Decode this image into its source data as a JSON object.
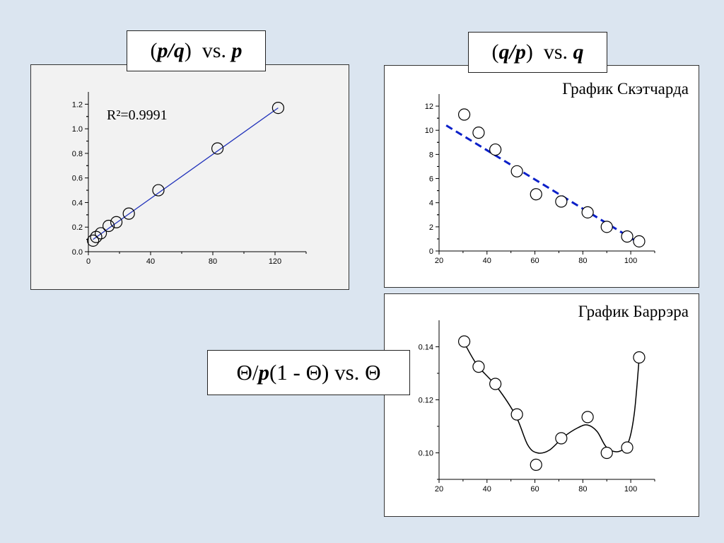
{
  "labels": {
    "chart1": {
      "open": "(",
      "a": "p",
      "slash": "/",
      "b": "q",
      "close": ")",
      "vs": "vs.",
      "c": "p"
    },
    "chart2": {
      "open": "(",
      "a": "q",
      "slash": "/",
      "b": "p",
      "close": ")",
      "vs": "vs.",
      "c": "q"
    },
    "chart3": {
      "theta1": "Θ",
      "slash": "/",
      "p": "p",
      "rest": "(1 - Θ)",
      "vs": "vs.",
      "theta2": "Θ"
    }
  },
  "chart_data": [
    {
      "type": "scatter",
      "annotation": "R²=0.9991",
      "xlim": [
        0,
        140
      ],
      "ylim": [
        0,
        1.3
      ],
      "x_ticks": [
        "0",
        "40",
        "80",
        "120"
      ],
      "y_ticks": [
        "0.0",
        "0.2",
        "0.4",
        "0.6",
        "0.8",
        "1.0",
        "1.2"
      ],
      "points": [
        {
          "x": 3,
          "y": 0.09
        },
        {
          "x": 5,
          "y": 0.12
        },
        {
          "x": 8,
          "y": 0.15
        },
        {
          "x": 13,
          "y": 0.21
        },
        {
          "x": 18,
          "y": 0.24
        },
        {
          "x": 26,
          "y": 0.31
        },
        {
          "x": 45,
          "y": 0.5
        },
        {
          "x": 83,
          "y": 0.84
        },
        {
          "x": 122,
          "y": 1.17
        }
      ],
      "fit_line": [
        {
          "x": 3,
          "y": 0.1
        },
        {
          "x": 122,
          "y": 1.17
        }
      ],
      "line_color": "#2233bb",
      "grid": false
    },
    {
      "type": "scatter",
      "title": "График Скэтчарда",
      "xlim": [
        20,
        110
      ],
      "ylim": [
        0,
        13
      ],
      "x_ticks": [
        "20",
        "40",
        "60",
        "80",
        "100"
      ],
      "y_ticks": [
        "0",
        "2",
        "4",
        "6",
        "8",
        "10",
        "12"
      ],
      "points": [
        {
          "x": 30.5,
          "y": 11.3
        },
        {
          "x": 36.5,
          "y": 9.8
        },
        {
          "x": 43.5,
          "y": 8.4
        },
        {
          "x": 52.5,
          "y": 6.6
        },
        {
          "x": 60.5,
          "y": 4.7
        },
        {
          "x": 71,
          "y": 4.1
        },
        {
          "x": 82,
          "y": 3.2
        },
        {
          "x": 90,
          "y": 2.0
        },
        {
          "x": 98.5,
          "y": 1.2
        },
        {
          "x": 103.5,
          "y": 0.8
        }
      ],
      "fit_line": [
        {
          "x": 23,
          "y": 10.4
        },
        {
          "x": 104,
          "y": 0.6
        }
      ],
      "line_color": "#0a1fc8",
      "line_style": "dashed",
      "grid": false
    },
    {
      "type": "scatter",
      "title": "График Баррэра",
      "xlim": [
        20,
        110
      ],
      "ylim": [
        0.09,
        0.15
      ],
      "x_ticks": [
        "20",
        "40",
        "60",
        "80",
        "100"
      ],
      "y_ticks": [
        "0.10",
        "0.12",
        "0.14"
      ],
      "points": [
        {
          "x": 30.5,
          "y": 0.142
        },
        {
          "x": 36.5,
          "y": 0.1325
        },
        {
          "x": 43.5,
          "y": 0.126
        },
        {
          "x": 52.5,
          "y": 0.1145
        },
        {
          "x": 60.5,
          "y": 0.0955
        },
        {
          "x": 71,
          "y": 0.1055
        },
        {
          "x": 82,
          "y": 0.1135
        },
        {
          "x": 90,
          "y": 0.1
        },
        {
          "x": 98.5,
          "y": 0.102
        },
        {
          "x": 103.5,
          "y": 0.136
        }
      ],
      "curve": [
        {
          "x": 30.5,
          "y": 0.1415
        },
        {
          "x": 36,
          "y": 0.133
        },
        {
          "x": 44,
          "y": 0.125
        },
        {
          "x": 52,
          "y": 0.114
        },
        {
          "x": 57,
          "y": 0.103
        },
        {
          "x": 61,
          "y": 0.1
        },
        {
          "x": 66,
          "y": 0.101
        },
        {
          "x": 72,
          "y": 0.106
        },
        {
          "x": 78,
          "y": 0.1095
        },
        {
          "x": 82,
          "y": 0.1105
        },
        {
          "x": 86,
          "y": 0.108
        },
        {
          "x": 90,
          "y": 0.102
        },
        {
          "x": 95,
          "y": 0.1005
        },
        {
          "x": 99,
          "y": 0.104
        },
        {
          "x": 101.5,
          "y": 0.115
        },
        {
          "x": 103.5,
          "y": 0.1355
        }
      ],
      "line_color": "#000000",
      "grid": false
    }
  ]
}
